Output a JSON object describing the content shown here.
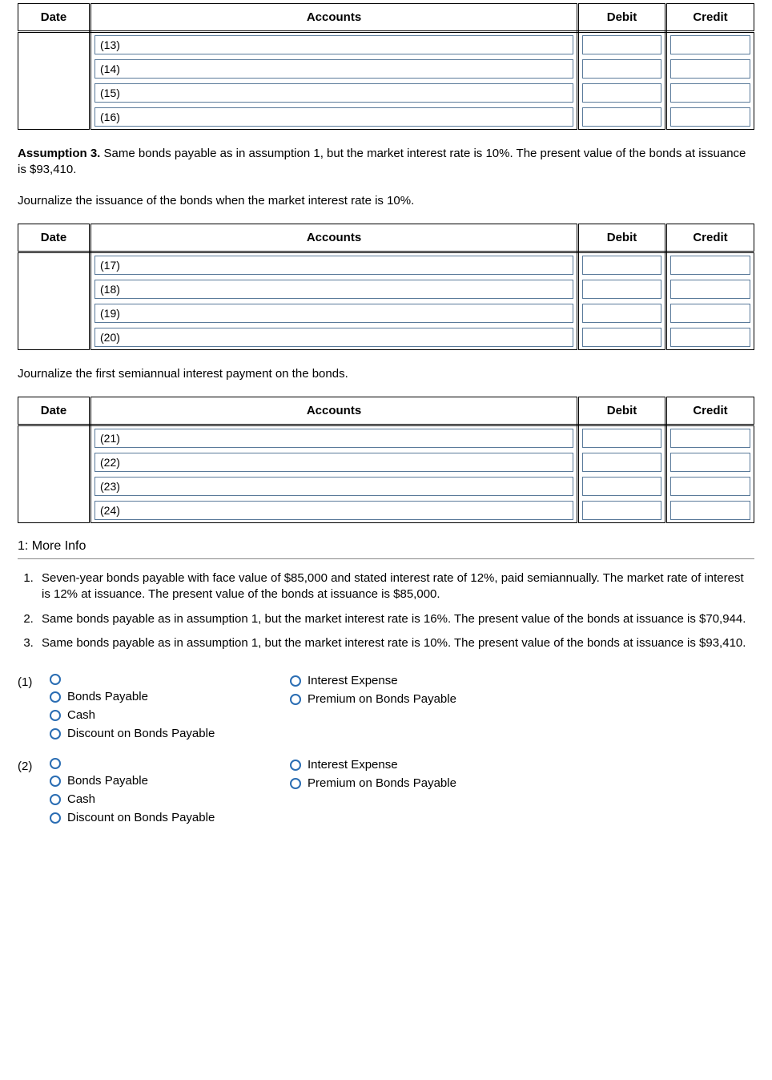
{
  "tables": {
    "columns": [
      "Date",
      "Accounts",
      "Debit",
      "Credit"
    ],
    "t1_rows": [
      "(13)",
      "(14)",
      "(15)",
      "(16)"
    ],
    "t2_rows": [
      "(17)",
      "(18)",
      "(19)",
      "(20)"
    ],
    "t3_rows": [
      "(21)",
      "(22)",
      "(23)",
      "(24)"
    ]
  },
  "text": {
    "assumption3_lead": "Assumption 3.",
    "assumption3_body": " Same bonds payable as in assumption 1, but the market interest rate is 10%. The present value of the bonds at issuance is $93,410.",
    "journalize_issuance": "Journalize the issuance of the bonds when the market interest rate is 10%.",
    "journalize_first": "Journalize the first semiannual interest payment on the bonds.",
    "more_info_heading": "1: More Info",
    "info1": "Seven-year bonds payable with face value of $85,000 and stated interest rate of 12%, paid semiannually. The market rate of interest is 12% at issuance. The present value of the bonds at issuance is $85,000.",
    "info2": "Same bonds payable as in assumption 1, but the market interest rate is 16%. The present value of the bonds at issuance is $70,944.",
    "info3": "Same bonds payable as in assumption 1, but the market interest rate is 10%. The present value of the bonds at issuance is $93,410."
  },
  "radio_groups": [
    {
      "lead": "(1)",
      "left": [
        "",
        "Bonds Payable",
        "Cash",
        "Discount on Bonds Payable"
      ],
      "right": [
        "Interest Expense",
        "Premium on Bonds Payable"
      ]
    },
    {
      "lead": "(2)",
      "left": [
        "",
        "Bonds Payable",
        "Cash",
        "Discount on Bonds Payable"
      ],
      "right": [
        "Interest Expense",
        "Premium on Bonds Payable"
      ]
    }
  ],
  "style": {
    "input_border": "#5a7a9a",
    "radio_border": "#2a6db3",
    "font_family": "Arial",
    "base_font_size": 15
  }
}
